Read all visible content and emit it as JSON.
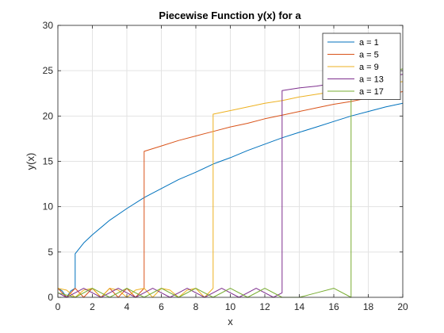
{
  "chart_data": {
    "type": "line",
    "title": "Piecewise Function y(x) for a",
    "xlabel": "x",
    "ylabel": "y(x)",
    "xlim": [
      0,
      20
    ],
    "ylim": [
      0,
      30
    ],
    "xticks": [
      0,
      2,
      4,
      6,
      8,
      10,
      12,
      14,
      16,
      18,
      20
    ],
    "yticks": [
      0,
      5,
      10,
      15,
      20,
      25,
      30
    ],
    "grid": true,
    "legend_position": "top-right",
    "series": [
      {
        "name": "a = 1",
        "color": "#0072BD",
        "x": [
          0,
          0.25,
          0.5,
          0.75,
          1,
          1,
          1.5,
          2,
          3,
          4,
          5,
          6,
          7,
          8,
          9,
          10,
          11,
          12,
          13,
          14,
          15,
          16,
          17,
          18,
          19,
          20
        ],
        "y": [
          1,
          0.71,
          0,
          0.71,
          1,
          4.8,
          6.0,
          6.9,
          8.5,
          9.8,
          11.0,
          12.0,
          13.0,
          13.8,
          14.7,
          15.4,
          16.2,
          16.9,
          17.6,
          18.2,
          18.8,
          19.4,
          20.0,
          20.5,
          21.0,
          21.4
        ]
      },
      {
        "name": "a = 5",
        "color": "#D95319",
        "x": [
          0,
          0.5,
          1,
          1.5,
          2,
          2.5,
          3,
          3.5,
          4,
          4.5,
          5,
          5,
          6,
          7,
          8,
          9,
          10,
          11,
          12,
          13,
          14,
          15,
          16,
          17,
          18,
          19,
          20
        ],
        "y": [
          1,
          0,
          1,
          0,
          1,
          0,
          1,
          0,
          1,
          0,
          1,
          16.1,
          16.7,
          17.3,
          17.8,
          18.3,
          18.8,
          19.2,
          19.7,
          20.1,
          20.5,
          20.9,
          21.3,
          21.6,
          22.0,
          22.3,
          22.7
        ]
      },
      {
        "name": "a = 9",
        "color": "#EDB120",
        "x": [
          0,
          0.5,
          1,
          1.5,
          2,
          2.5,
          3,
          3.5,
          4,
          4.5,
          5,
          5.5,
          6,
          6.5,
          7,
          7.5,
          8,
          8.5,
          9,
          9,
          10,
          11,
          12,
          13,
          14,
          15,
          16,
          17,
          18,
          19,
          20
        ],
        "y": [
          1,
          0.8,
          0,
          0.8,
          1,
          0,
          1,
          0.8,
          0,
          0.8,
          1,
          0,
          1,
          0.8,
          0,
          0.8,
          1,
          0,
          1,
          20.2,
          20.6,
          21.0,
          21.4,
          21.7,
          22.1,
          22.4,
          22.7,
          23.0,
          23.3,
          23.5,
          23.8
        ]
      },
      {
        "name": "a = 13",
        "color": "#7E2F8E",
        "x": [
          0,
          0.5,
          1,
          1.5,
          2,
          2.5,
          3,
          3.5,
          4,
          4.5,
          5,
          5.5,
          6,
          6.5,
          7,
          7.5,
          8,
          8.5,
          9,
          9.5,
          10,
          10.5,
          11,
          11.5,
          12,
          12.5,
          13,
          13,
          14,
          15,
          16,
          17,
          18,
          19,
          20
        ],
        "y": [
          0.5,
          0,
          0.5,
          1,
          0.5,
          0,
          0.5,
          1,
          0.5,
          0,
          0.5,
          1,
          0.5,
          0,
          0.5,
          1,
          0.5,
          0,
          0.5,
          1,
          0.5,
          0,
          0.5,
          1,
          0.5,
          0,
          0.5,
          22.8,
          23.1,
          23.3,
          23.6,
          23.8,
          24.1,
          24.3,
          24.6
        ]
      },
      {
        "name": "a = 17",
        "color": "#77AC30",
        "x": [
          0,
          1,
          2,
          3,
          4,
          5,
          6,
          7,
          8,
          9,
          10,
          11,
          12,
          13,
          14,
          15,
          16,
          17,
          17,
          18,
          19,
          20
        ],
        "y": [
          0.5,
          0,
          1,
          0,
          1,
          0,
          1,
          0,
          1,
          0,
          1,
          0,
          1,
          0,
          0,
          0.5,
          1,
          0,
          24.0,
          24.4,
          24.8,
          25.2
        ]
      }
    ]
  }
}
